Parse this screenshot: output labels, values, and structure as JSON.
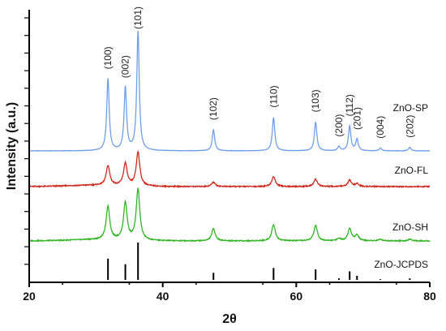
{
  "chart_data": {
    "type": "line",
    "xlabel": "2θ",
    "ylabel": "Intensity (a.u.)",
    "xlim": [
      20,
      80
    ],
    "x_ticks": [
      20,
      40,
      60,
      80
    ],
    "grid": false,
    "series": [
      {
        "name": "ZnO-SP",
        "color": "#6f9ee8",
        "baseline": 1.0,
        "peaks": [
          [
            31.8,
            0.82
          ],
          [
            34.4,
            0.72
          ],
          [
            36.3,
            1.36
          ],
          [
            47.6,
            0.24
          ],
          [
            56.6,
            0.38
          ],
          [
            62.9,
            0.33
          ],
          [
            66.4,
            0.05
          ],
          [
            68.0,
            0.28
          ],
          [
            69.1,
            0.13
          ],
          [
            72.6,
            0.03
          ],
          [
            77.0,
            0.04
          ]
        ]
      },
      {
        "name": "ZnO-FL",
        "color": "#cc2a1e",
        "baseline": 0.0,
        "peaks": [
          [
            31.8,
            0.22
          ],
          [
            34.4,
            0.25
          ],
          [
            36.3,
            0.38
          ],
          [
            47.6,
            0.05
          ],
          [
            56.6,
            0.11
          ],
          [
            62.9,
            0.08
          ],
          [
            68.0,
            0.07
          ],
          [
            69.1,
            0.03
          ]
        ]
      },
      {
        "name": "ZnO-SH",
        "color": "#33b526",
        "baseline": 0.0,
        "peaks": [
          [
            31.8,
            0.41
          ],
          [
            34.4,
            0.46
          ],
          [
            36.3,
            0.63
          ],
          [
            47.6,
            0.15
          ],
          [
            56.6,
            0.2
          ],
          [
            62.9,
            0.19
          ],
          [
            66.4,
            0.03
          ],
          [
            68.0,
            0.15
          ],
          [
            69.1,
            0.07
          ],
          [
            72.6,
            0.02
          ],
          [
            77.0,
            0.02
          ]
        ]
      },
      {
        "name": "ZnO-JCPDS",
        "color": "#000000",
        "type": "stick",
        "sticks": [
          [
            31.8,
            0.57
          ],
          [
            34.4,
            0.42
          ],
          [
            36.3,
            1.0
          ],
          [
            47.6,
            0.19
          ],
          [
            56.6,
            0.32
          ],
          [
            62.9,
            0.28
          ],
          [
            66.4,
            0.04
          ],
          [
            68.0,
            0.23
          ],
          [
            69.1,
            0.11
          ],
          [
            72.6,
            0.02
          ],
          [
            77.0,
            0.04
          ]
        ]
      }
    ],
    "peak_labels": [
      {
        "text": "(100)",
        "x": 31.8
      },
      {
        "text": "(002)",
        "x": 34.4
      },
      {
        "text": "(101)",
        "x": 36.3
      },
      {
        "text": "(102)",
        "x": 47.6
      },
      {
        "text": "(110)",
        "x": 56.6
      },
      {
        "text": "(103)",
        "x": 62.9
      },
      {
        "text": "(200)",
        "x": 66.4
      },
      {
        "text": "(112)",
        "x": 68.0
      },
      {
        "text": "(201)",
        "x": 69.1
      },
      {
        "text": "(004)",
        "x": 72.6
      },
      {
        "text": "(202)",
        "x": 77.0
      }
    ]
  }
}
